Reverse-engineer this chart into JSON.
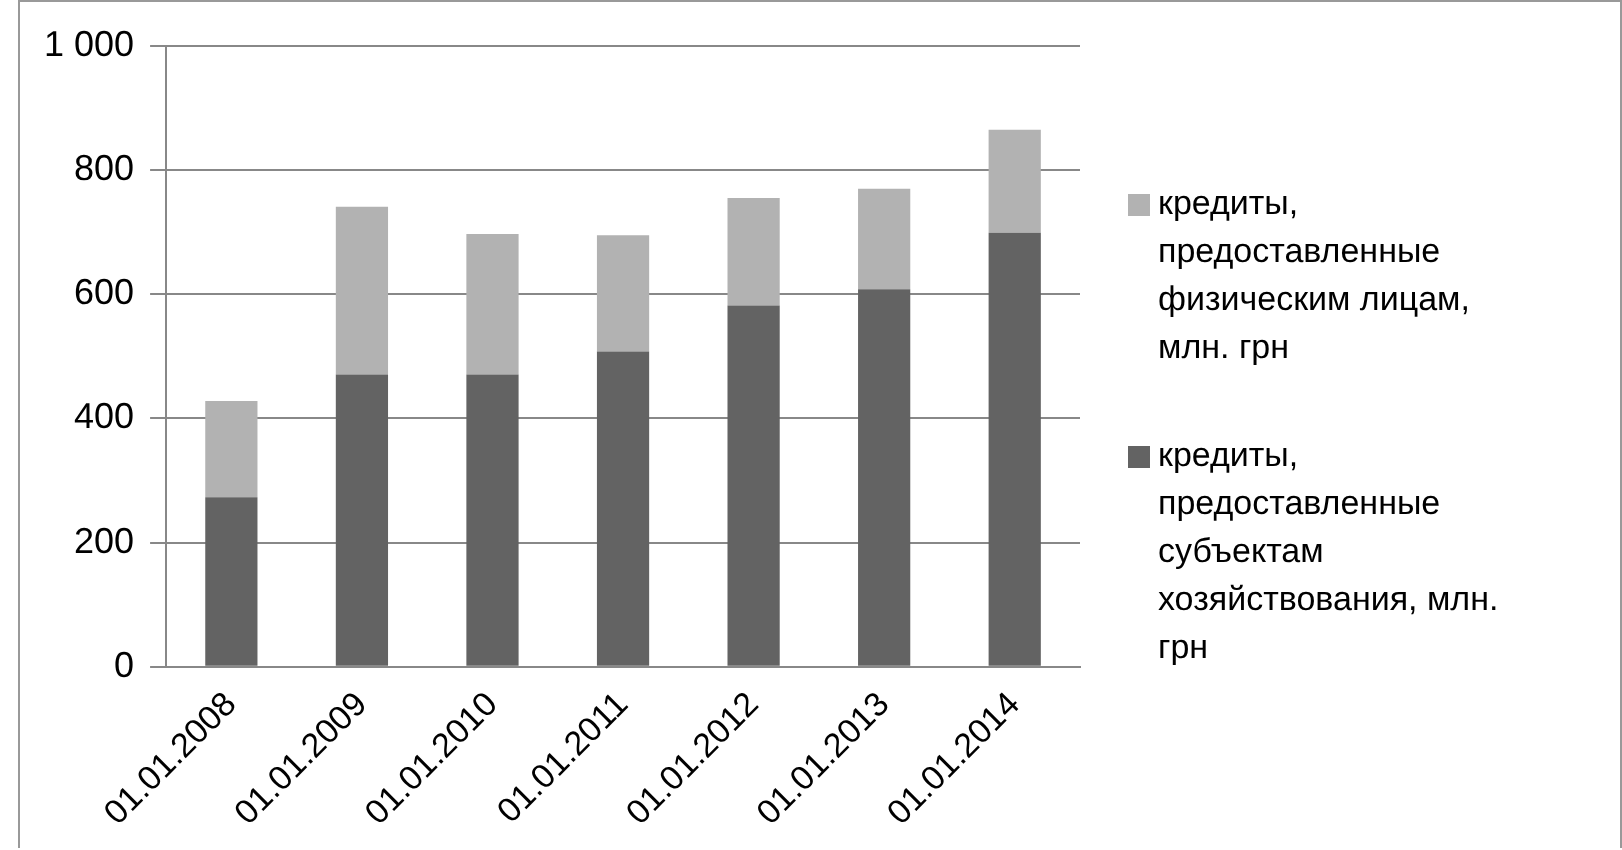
{
  "chart_data": {
    "type": "bar",
    "stacked": true,
    "categories": [
      "01.01.2008",
      "01.01.2009",
      "01.01.2010",
      "01.01.2011",
      "01.01.2012",
      "01.01.2013",
      "01.01.2014"
    ],
    "series": [
      {
        "name": "кредиты, предоставленные субъектам хозяйствования, млн. грн",
        "color": "#636363",
        "values": [
          273,
          471,
          471,
          508,
          582,
          608,
          699
        ]
      },
      {
        "name": "кредиты, предоставленные физическим лицам, млн. грн",
        "color": "#b2b2b2",
        "values": [
          155,
          270,
          226,
          187,
          173,
          162,
          166
        ]
      }
    ],
    "ylim": [
      0,
      1000
    ],
    "yticks": [
      0,
      200,
      400,
      600,
      800,
      {
        "value": 1000,
        "label": "1 000"
      }
    ],
    "grid": "y",
    "legend": "right"
  }
}
